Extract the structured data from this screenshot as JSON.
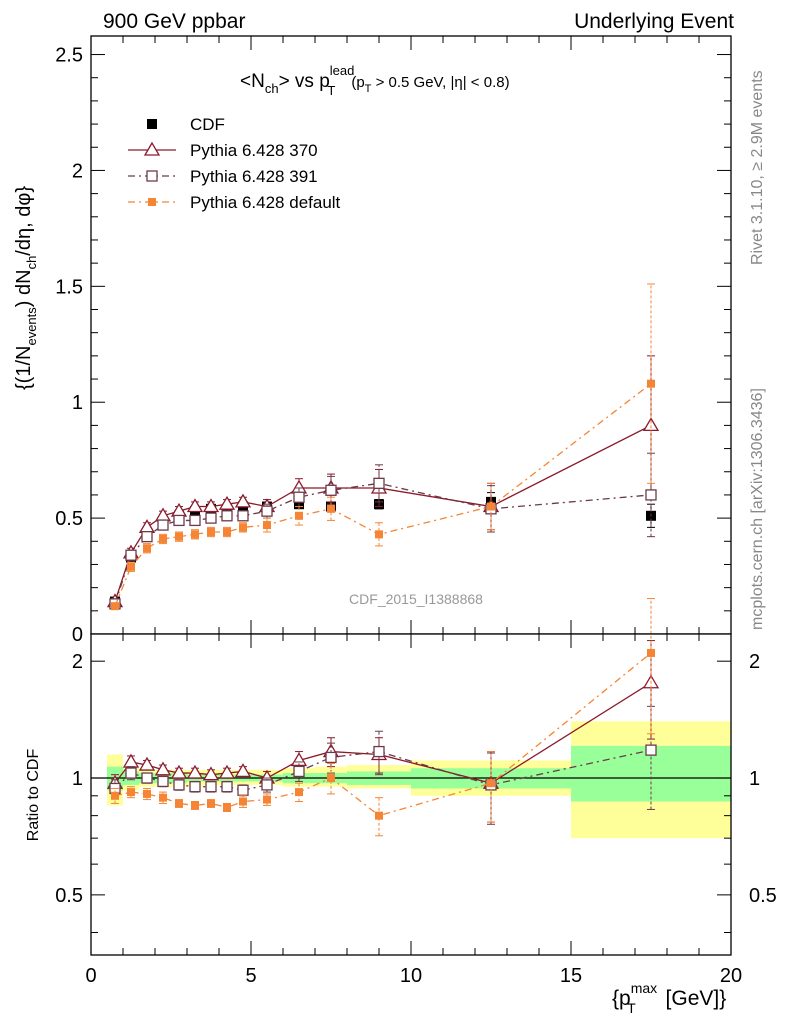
{
  "header": {
    "left": "900 GeV ppbar",
    "right": "Underlying Event",
    "watermark": "CDF_2015_I1388868",
    "side_top": "Rivet 3.1.10, ≥ 2.9M events",
    "side_bottom": "mcplots.cern.ch [arXiv:1306.3436]"
  },
  "colors": {
    "cdf": "#000000",
    "p370": "#8b1a2b",
    "p391": "#6b3a4a",
    "pdef": "#f58535",
    "band_inner": "#99ff99",
    "band_outer": "#ffff99"
  },
  "chart_data": [
    {
      "type": "scatter",
      "panel": "main",
      "title": {
        "base": "<N",
        "sub1": "ch",
        "mid": "> vs p",
        "sup2": "lead",
        "sub2": "T",
        "cut_a": "(p",
        "cut_sub": "T",
        "cut_b": " > 0.5 GeV, |η| < 0.8)"
      },
      "ylabel": {
        "a": "{(1/N",
        "sub1": "events",
        "b": ") dN",
        "sub2": "ch",
        "c": "/dη, dφ}"
      },
      "xlim": [
        0,
        20
      ],
      "ylim": [
        0,
        2.58
      ],
      "yticks": [
        {
          "v": 0,
          "label": "0"
        },
        {
          "v": 0.5,
          "label": "0.5"
        },
        {
          "v": 1,
          "label": "1"
        },
        {
          "v": 1.5,
          "label": "1.5"
        },
        {
          "v": 2,
          "label": "2"
        },
        {
          "v": 2.5,
          "label": "2.5"
        }
      ],
      "legend": {
        "placement": "top-left",
        "entries": [
          {
            "series": "cdf",
            "label": "CDF"
          },
          {
            "series": "p370",
            "label": "Pythia 6.428 370"
          },
          {
            "series": "p391",
            "label": "Pythia 6.428 391"
          },
          {
            "series": "pdef",
            "label": "Pythia 6.428 default"
          }
        ]
      },
      "x": [
        0.75,
        1.25,
        1.75,
        2.25,
        2.75,
        3.25,
        3.75,
        4.25,
        4.75,
        5.5,
        6.5,
        7.5,
        9.0,
        12.5,
        17.5
      ],
      "series": [
        {
          "key": "cdf",
          "name": "CDF",
          "marker": "filled-square",
          "line": "none",
          "values": [
            0.14,
            0.33,
            0.42,
            0.48,
            0.51,
            0.53,
            0.54,
            0.54,
            0.55,
            0.55,
            0.56,
            0.55,
            0.56,
            0.57,
            0.51
          ],
          "errors": [
            0.005,
            0.01,
            0.01,
            0.01,
            0.01,
            0.01,
            0.01,
            0.01,
            0.01,
            0.01,
            0.01,
            0.01,
            0.02,
            0.04,
            0.05
          ]
        },
        {
          "key": "p370",
          "name": "Pythia 6.428 370",
          "marker": "open-triangle",
          "line": "solid",
          "values": [
            0.14,
            0.35,
            0.46,
            0.51,
            0.53,
            0.55,
            0.55,
            0.56,
            0.57,
            0.55,
            0.63,
            0.63,
            0.63,
            0.55,
            0.9
          ],
          "errors": [
            0.01,
            0.02,
            0.02,
            0.02,
            0.02,
            0.02,
            0.02,
            0.02,
            0.02,
            0.03,
            0.04,
            0.06,
            0.08,
            0.1,
            0.3
          ]
        },
        {
          "key": "p391",
          "name": "Pythia 6.428 391",
          "marker": "open-square",
          "line": "dashdot",
          "values": [
            0.13,
            0.34,
            0.42,
            0.47,
            0.49,
            0.49,
            0.5,
            0.51,
            0.51,
            0.53,
            0.59,
            0.62,
            0.65,
            0.54,
            0.6
          ],
          "errors": [
            0.01,
            0.02,
            0.02,
            0.02,
            0.02,
            0.02,
            0.02,
            0.02,
            0.02,
            0.03,
            0.04,
            0.06,
            0.08,
            0.1,
            0.18
          ]
        },
        {
          "key": "pdef",
          "name": "Pythia 6.428 default",
          "marker": "small-square",
          "line": "dashdot",
          "values": [
            0.12,
            0.29,
            0.37,
            0.41,
            0.42,
            0.43,
            0.44,
            0.44,
            0.46,
            0.47,
            0.51,
            0.54,
            0.43,
            0.55,
            1.08
          ],
          "errors": [
            0.01,
            0.02,
            0.02,
            0.02,
            0.02,
            0.02,
            0.02,
            0.02,
            0.02,
            0.03,
            0.04,
            0.05,
            0.05,
            0.1,
            0.43
          ]
        }
      ]
    },
    {
      "type": "scatter",
      "panel": "ratio",
      "ylabel": "Ratio to CDF",
      "xlabel": {
        "a": "{p",
        "sup": "max",
        "sub": "T",
        "b": " [GeV]}"
      },
      "xlim": [
        0,
        20
      ],
      "ylim": [
        0.35,
        2.35
      ],
      "log_y": true,
      "yticks": [
        {
          "v": 0.5,
          "label": "0.5"
        },
        {
          "v": 1,
          "label": "1"
        },
        {
          "v": 2,
          "label": "2"
        }
      ],
      "xticks": [
        {
          "v": 0,
          "label": "0"
        },
        {
          "v": 5,
          "label": "5"
        },
        {
          "v": 10,
          "label": "10"
        },
        {
          "v": 15,
          "label": "15"
        },
        {
          "v": 20,
          "label": "20"
        }
      ],
      "bands": {
        "bins": [
          [
            0.5,
            1.0
          ],
          [
            1.0,
            1.5
          ],
          [
            1.5,
            2.0
          ],
          [
            2.0,
            2.5
          ],
          [
            2.5,
            3.0
          ],
          [
            3.0,
            3.5
          ],
          [
            3.5,
            4.0
          ],
          [
            4.0,
            4.5
          ],
          [
            4.5,
            5.0
          ],
          [
            5.0,
            6.0
          ],
          [
            6.0,
            7.0
          ],
          [
            7.0,
            8.0
          ],
          [
            8.0,
            10.0
          ],
          [
            10.0,
            15.0
          ],
          [
            15.0,
            20.0
          ]
        ],
        "inner_lo": [
          0.93,
          0.96,
          0.97,
          0.97,
          0.97,
          0.98,
          0.98,
          0.98,
          0.98,
          0.98,
          0.97,
          0.97,
          0.96,
          0.94,
          0.87
        ],
        "inner_hi": [
          1.07,
          1.04,
          1.03,
          1.03,
          1.03,
          1.02,
          1.02,
          1.02,
          1.02,
          1.02,
          1.03,
          1.03,
          1.04,
          1.06,
          1.21
        ],
        "outer_lo": [
          0.85,
          0.93,
          0.95,
          0.95,
          0.95,
          0.95,
          0.96,
          0.96,
          0.96,
          0.96,
          0.95,
          0.95,
          0.94,
          0.9,
          0.7
        ],
        "outer_hi": [
          1.15,
          1.07,
          1.05,
          1.05,
          1.05,
          1.05,
          1.05,
          1.05,
          1.05,
          1.05,
          1.06,
          1.07,
          1.08,
          1.11,
          1.4
        ]
      },
      "reference": 1,
      "series": [
        {
          "key": "p370",
          "marker": "open-triangle",
          "line": "solid",
          "values": [
            0.97,
            1.1,
            1.08,
            1.05,
            1.03,
            1.03,
            1.02,
            1.03,
            1.04,
            1.0,
            1.11,
            1.17,
            1.15,
            0.97,
            1.76
          ],
          "errors": [
            0.05,
            0.04,
            0.03,
            0.03,
            0.03,
            0.03,
            0.03,
            0.03,
            0.03,
            0.04,
            0.06,
            0.1,
            0.12,
            0.2,
            0.5
          ]
        },
        {
          "key": "p391",
          "marker": "open-square",
          "line": "dashdot",
          "values": [
            0.94,
            1.03,
            1.0,
            0.98,
            0.96,
            0.95,
            0.95,
            0.95,
            0.93,
            0.96,
            1.04,
            1.13,
            1.17,
            0.96,
            1.18
          ],
          "errors": [
            0.05,
            0.04,
            0.03,
            0.03,
            0.03,
            0.03,
            0.03,
            0.03,
            0.03,
            0.04,
            0.06,
            0.1,
            0.15,
            0.2,
            0.35
          ]
        },
        {
          "key": "pdef",
          "marker": "small-square",
          "line": "dashdot",
          "values": [
            0.9,
            0.92,
            0.91,
            0.89,
            0.86,
            0.85,
            0.86,
            0.84,
            0.87,
            0.88,
            0.92,
            1.0,
            0.8,
            0.97,
            2.1
          ],
          "errors": [
            0.04,
            0.03,
            0.03,
            0.03,
            0.02,
            0.02,
            0.02,
            0.02,
            0.03,
            0.03,
            0.05,
            0.09,
            0.09,
            0.2,
            0.8
          ]
        }
      ]
    }
  ]
}
